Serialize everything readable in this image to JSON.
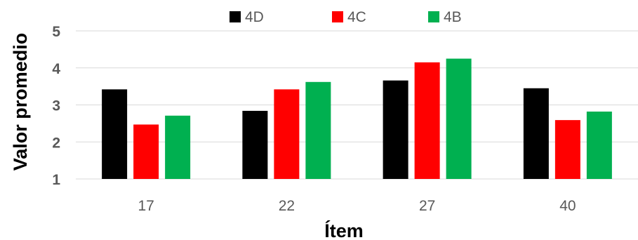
{
  "chart_data": {
    "type": "bar",
    "title": "",
    "xlabel": "Ítem",
    "ylabel": "Valor promedio",
    "categories": [
      "17",
      "22",
      "27",
      "40"
    ],
    "series": [
      {
        "name": "4D",
        "color": "#000000",
        "values": [
          3.42,
          2.84,
          3.66,
          3.45
        ]
      },
      {
        "name": "4C",
        "color": "#ff0000",
        "values": [
          2.47,
          3.42,
          4.15,
          2.59
        ]
      },
      {
        "name": "4B",
        "color": "#00b050",
        "values": [
          2.71,
          3.62,
          4.25,
          2.82
        ]
      }
    ],
    "ylim": [
      1,
      5
    ],
    "yticks": [
      "1",
      "2",
      "3",
      "4",
      "5"
    ],
    "grid": true,
    "legend_position": "top"
  }
}
